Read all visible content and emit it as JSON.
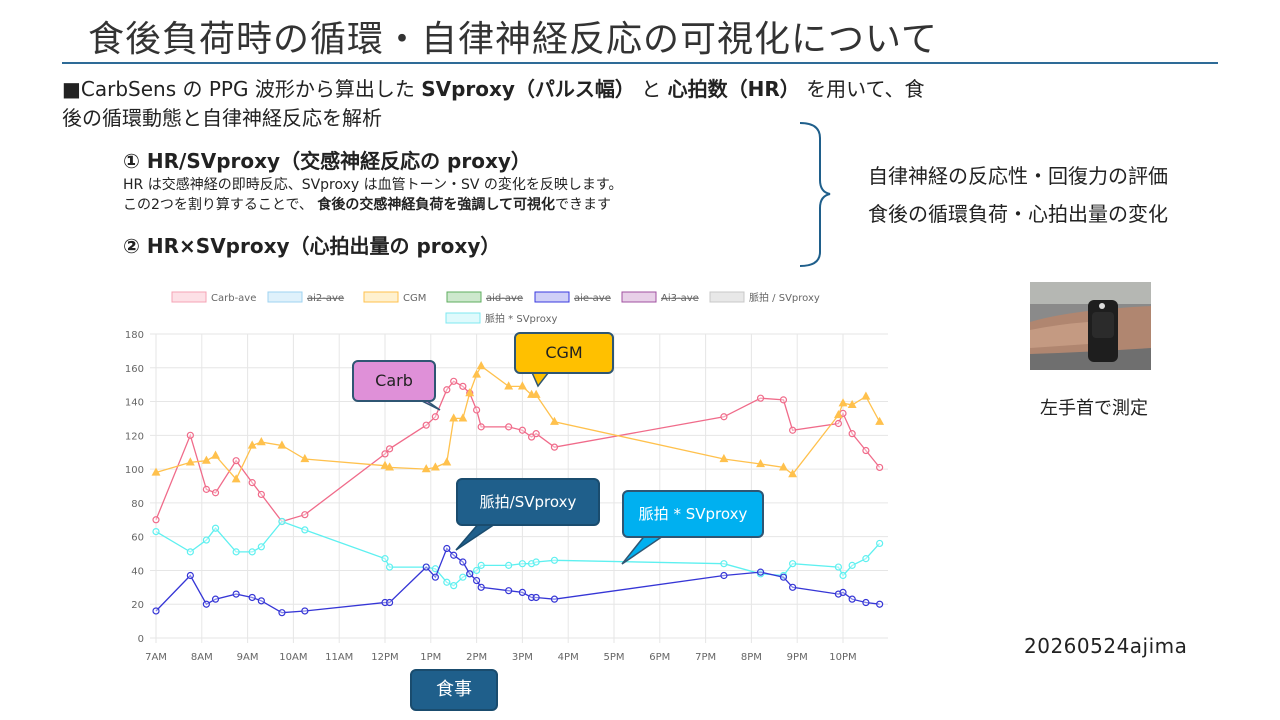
{
  "slide": {
    "title": "食後負荷時の循環・自律神経反応の可視化について",
    "intro_line1_a": "■CarbSens の PPG 波形から算出した ",
    "intro_line1_b": "SVproxy（パルス幅）",
    "intro_line1_c": " と ",
    "intro_line1_d": "心拍数（HR）",
    "intro_line1_e": " を用いて、食",
    "intro_line2": "後の循環動態と自律神経反応を解析",
    "point1_title": "① HR/SVproxy（交感神経反応の proxy）",
    "point1_desc1": "HR は交感神経の即時反応、SVproxy は血管トーン・SV の変化を反映します。",
    "point1_desc2_a": "この2つを割り算することで、 ",
    "point1_desc2_b": "食後の交感神経負荷を強調して可視化",
    "point1_desc2_c": "できます",
    "point2_title": "② HR×SVproxy（心拍出量の proxy）",
    "eval_line1": "自律神経の反応性・回復力の評価",
    "eval_line2": "食後の循環負荷・心拍出量の変化",
    "photo_caption": "左手首で測定",
    "footer_id": "20260524ajima"
  },
  "callouts": {
    "carb": "Carb",
    "cgm": "CGM",
    "hr_sv": "脈拍/SVproxy",
    "pulse_sv": "脈拍 * SVproxy",
    "meal": "食事"
  },
  "colors": {
    "carb": "#f06b8a",
    "cgm": "#ffc14d",
    "hr_sv": "#3636d6",
    "pulse_sv": "#5ef0f0",
    "title_rule": "#2e6b97"
  },
  "chart_data": {
    "type": "line",
    "x_tick_labels": [
      "7AM",
      "8AM",
      "9AM",
      "10AM",
      "11AM",
      "12PM",
      "1PM",
      "2PM",
      "3PM",
      "4PM",
      "5PM",
      "6PM",
      "7PM",
      "8PM",
      "9PM",
      "10PM"
    ],
    "y_ticks": [
      0,
      20,
      40,
      60,
      80,
      100,
      120,
      140,
      160,
      180
    ],
    "ylim": [
      0,
      180
    ],
    "grid": true,
    "legend_position": "top",
    "legend": [
      {
        "label": "Carb-ave",
        "color": "#f5a3b5",
        "fill": "#fde0e6",
        "hidden": false
      },
      {
        "label": "ai2-ave",
        "color": "#9fd3f0",
        "fill": "#dff1fb",
        "hidden": true
      },
      {
        "label": "CGM",
        "color": "#ffc14d",
        "fill": "#fff1cf",
        "hidden": false
      },
      {
        "label": "aid-ave",
        "color": "#5fae5f",
        "fill": "#cde8cd",
        "hidden": true
      },
      {
        "label": "aie-ave",
        "color": "#3a3adf",
        "fill": "#cfcff7",
        "hidden": true
      },
      {
        "label": "Ai3-ave",
        "color": "#a050a0",
        "fill": "#e8d0e8",
        "hidden": true
      },
      {
        "label": "脈拍 / SVproxy",
        "color": "#c8c8c8",
        "fill": "#e8e8e8",
        "hidden": false
      },
      {
        "label": "脈拍 * SVproxy",
        "color": "#7fe8f0",
        "fill": "#dffafc",
        "hidden": false
      }
    ],
    "series": [
      {
        "name": "Carb-ave",
        "color": "#f06b8a",
        "marker": "circle",
        "points": [
          [
            7.0,
            70
          ],
          [
            7.75,
            120
          ],
          [
            8.1,
            88
          ],
          [
            8.3,
            86
          ],
          [
            8.75,
            105
          ],
          [
            9.1,
            92
          ],
          [
            9.3,
            85
          ],
          [
            9.75,
            69
          ],
          [
            10.25,
            73
          ],
          [
            12.0,
            109
          ],
          [
            12.1,
            112
          ],
          [
            12.9,
            126
          ],
          [
            13.1,
            131
          ],
          [
            13.35,
            147
          ],
          [
            13.5,
            152
          ],
          [
            13.7,
            149
          ],
          [
            13.85,
            145
          ],
          [
            14.0,
            135
          ],
          [
            14.1,
            125
          ],
          [
            14.7,
            125
          ],
          [
            15.0,
            123
          ],
          [
            15.2,
            119
          ],
          [
            15.3,
            121
          ],
          [
            15.7,
            113
          ],
          [
            19.4,
            131
          ],
          [
            20.2,
            142
          ],
          [
            20.7,
            141
          ],
          [
            20.9,
            123
          ],
          [
            21.9,
            127
          ],
          [
            22.0,
            133
          ],
          [
            22.2,
            121
          ],
          [
            22.5,
            111
          ],
          [
            22.8,
            101
          ]
        ]
      },
      {
        "name": "CGM",
        "color": "#ffc14d",
        "marker": "triangle",
        "points": [
          [
            7.0,
            98
          ],
          [
            7.75,
            104
          ],
          [
            8.1,
            105
          ],
          [
            8.3,
            108
          ],
          [
            8.75,
            94
          ],
          [
            9.1,
            114
          ],
          [
            9.3,
            116
          ],
          [
            9.75,
            114
          ],
          [
            10.25,
            106
          ],
          [
            12.0,
            102
          ],
          [
            12.1,
            101
          ],
          [
            12.9,
            100
          ],
          [
            13.1,
            101
          ],
          [
            13.35,
            104
          ],
          [
            13.5,
            130
          ],
          [
            13.7,
            130
          ],
          [
            13.85,
            145
          ],
          [
            14.0,
            156
          ],
          [
            14.1,
            161
          ],
          [
            14.7,
            149
          ],
          [
            15.0,
            149
          ],
          [
            15.2,
            144
          ],
          [
            15.3,
            144
          ],
          [
            15.7,
            128
          ],
          [
            19.4,
            106
          ],
          [
            20.2,
            103
          ],
          [
            20.7,
            101
          ],
          [
            20.9,
            97
          ],
          [
            21.9,
            132
          ],
          [
            22.0,
            139
          ],
          [
            22.2,
            138
          ],
          [
            22.5,
            143
          ],
          [
            22.8,
            128
          ]
        ]
      },
      {
        "name": "脈拍 * SVproxy",
        "color": "#5ef0f0",
        "marker": "circle",
        "points": [
          [
            7.0,
            63
          ],
          [
            7.75,
            51
          ],
          [
            8.1,
            58
          ],
          [
            8.3,
            65
          ],
          [
            8.75,
            51
          ],
          [
            9.1,
            51
          ],
          [
            9.3,
            54
          ],
          [
            9.75,
            69
          ],
          [
            10.25,
            64
          ],
          [
            12.0,
            47
          ],
          [
            12.1,
            42
          ],
          [
            12.9,
            42
          ],
          [
            13.1,
            41
          ],
          [
            13.35,
            33
          ],
          [
            13.5,
            31
          ],
          [
            13.7,
            36
          ],
          [
            13.85,
            38
          ],
          [
            14.0,
            40
          ],
          [
            14.1,
            43
          ],
          [
            14.7,
            43
          ],
          [
            15.0,
            44
          ],
          [
            15.2,
            44
          ],
          [
            15.3,
            45
          ],
          [
            15.7,
            46
          ],
          [
            19.4,
            44
          ],
          [
            20.2,
            38
          ],
          [
            20.7,
            37
          ],
          [
            20.9,
            44
          ],
          [
            21.9,
            42
          ],
          [
            22.0,
            37
          ],
          [
            22.2,
            43
          ],
          [
            22.5,
            47
          ],
          [
            22.8,
            56
          ]
        ]
      },
      {
        "name": "脈拍/SVproxy",
        "color": "#3636d6",
        "marker": "circle",
        "points": [
          [
            7.0,
            16
          ],
          [
            7.75,
            37
          ],
          [
            8.1,
            20
          ],
          [
            8.3,
            23
          ],
          [
            8.75,
            26
          ],
          [
            9.1,
            24
          ],
          [
            9.3,
            22
          ],
          [
            9.75,
            15
          ],
          [
            10.25,
            16
          ],
          [
            12.0,
            21
          ],
          [
            12.1,
            21
          ],
          [
            12.9,
            42
          ],
          [
            13.1,
            36
          ],
          [
            13.35,
            53
          ],
          [
            13.5,
            49
          ],
          [
            13.7,
            45
          ],
          [
            13.85,
            38
          ],
          [
            14.0,
            34
          ],
          [
            14.1,
            30
          ],
          [
            14.7,
            28
          ],
          [
            15.0,
            27
          ],
          [
            15.2,
            24
          ],
          [
            15.3,
            24
          ],
          [
            15.7,
            23
          ],
          [
            19.4,
            37
          ],
          [
            20.2,
            39
          ],
          [
            20.7,
            36
          ],
          [
            20.9,
            30
          ],
          [
            21.9,
            26
          ],
          [
            22.0,
            27
          ],
          [
            22.2,
            23
          ],
          [
            22.5,
            21
          ],
          [
            22.8,
            20
          ]
        ]
      }
    ]
  }
}
